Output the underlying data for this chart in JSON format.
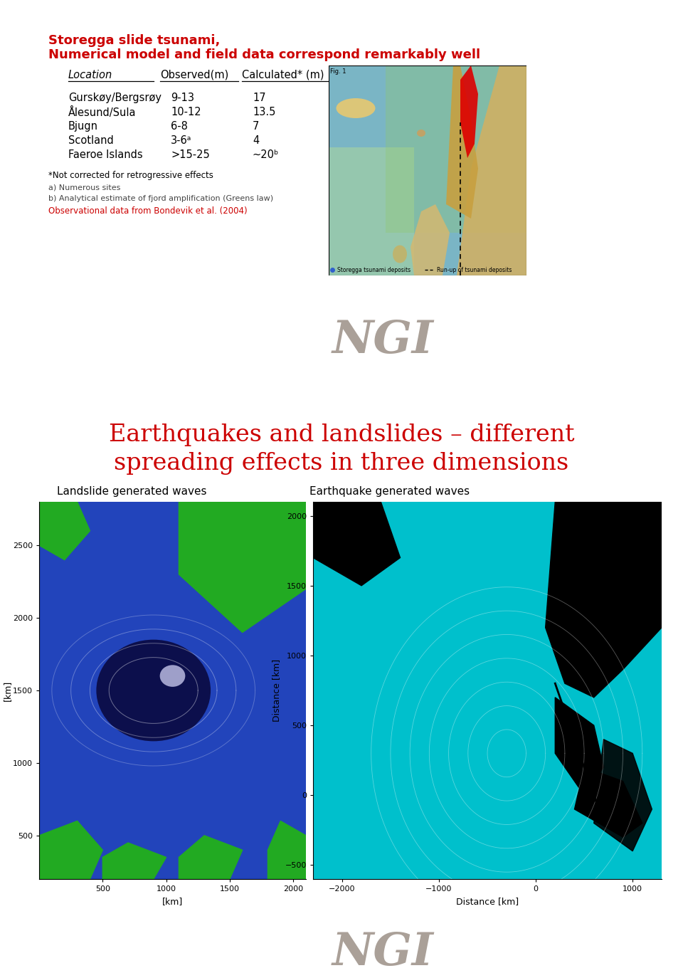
{
  "title1_line1": "Storegga slide tsunami,",
  "title1_line2": "Numerical model and field data correspond remarkably well",
  "title1_color": "#cc0000",
  "title1_fontsize": 13,
  "col_headers": [
    "Location",
    "Observed(m)",
    "Calculated* (m)"
  ],
  "table_rows": [
    [
      "Gurskøy/Bergsrøy",
      "9-13",
      "17"
    ],
    [
      "Ålesund/Sula",
      "10-12",
      "13.5"
    ],
    [
      "Bjugn",
      "6-8",
      "7"
    ],
    [
      "Scotland",
      "3-6ᵃ",
      "4"
    ],
    [
      "Faeroe Islands",
      ">15-25",
      "~20ᵇ"
    ]
  ],
  "footnote1": "*Not corrected for retrogressive effects",
  "footnote2": "a) Numerous sites",
  "footnote3": "b) Analytical estimate of fjord amplification (Greens law)",
  "footnote4": "Observational data from Bondevik et al. (2004)",
  "footnote4_color": "#cc0000",
  "title2_line1": "Earthquakes and landslides – different",
  "title2_line2": "spreading effects in three dimensions",
  "title2_color": "#cc0000",
  "title2_fontsize": 26,
  "label_landslide": "Landslide generated waves",
  "label_earthquake": "Earthquake generated waves",
  "bg_bar_color": "#c5bdb5",
  "bg_text_color": "#aaa098",
  "white_bg": "#ffffff"
}
